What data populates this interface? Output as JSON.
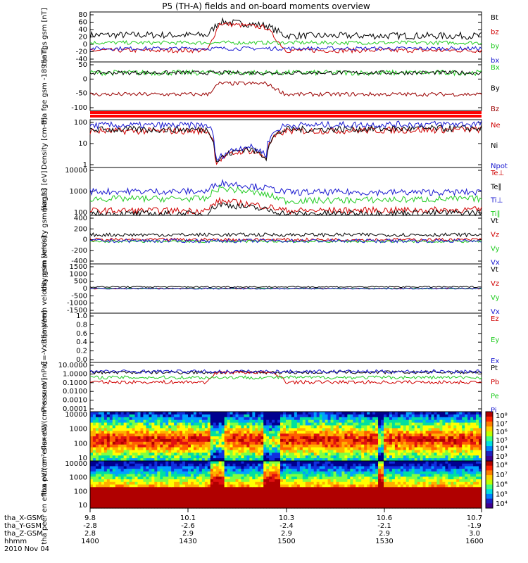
{
  "title": "P5 (TH-A) fields and on-board moments overview",
  "colors": {
    "black": "#000000",
    "red": "#d00000",
    "darkred": "#9a0000",
    "green": "#22cc22",
    "blue": "#1a1ad0"
  },
  "chart_data": [
    {
      "type": "line",
      "ylabel": "tha fgs gsm [nT]",
      "yticks": [
        "80",
        "60",
        "40",
        "20",
        "0",
        "-20",
        "-40"
      ],
      "ylim": [
        -40,
        90
      ],
      "series": [
        {
          "name": "Bt",
          "color": "#000000",
          "base": 30,
          "spread": 18,
          "x": [
            0,
            0.3,
            0.33,
            0.45,
            0.5,
            1
          ],
          "y": [
            30,
            30,
            65,
            55,
            28,
            28
          ]
        },
        {
          "name": "bz",
          "color": "#d00000",
          "base": -10,
          "spread": 12,
          "x": [
            0,
            0.3,
            0.33,
            0.45,
            0.5,
            1
          ],
          "y": [
            -10,
            -10,
            60,
            50,
            -10,
            -10
          ]
        },
        {
          "name": "by",
          "color": "#22cc22",
          "base": 10,
          "spread": 10,
          "x": [
            0,
            1
          ],
          "y": [
            10,
            10
          ]
        },
        {
          "name": "bx",
          "color": "#1a1ad0",
          "base": -5,
          "spread": 10,
          "x": [
            0,
            1
          ],
          "y": [
            -5,
            -5
          ]
        }
      ]
    },
    {
      "type": "line",
      "ylabel": "tha fge gsm -189 [nT]",
      "yticks": [
        "50",
        "0",
        "-50",
        "-100"
      ],
      "ylim": [
        -120,
        60
      ],
      "series": [
        {
          "name": "Bx",
          "color": "#22cc22",
          "base": 20,
          "spread": 20,
          "x": [
            0,
            1
          ],
          "y": [
            20,
            20
          ]
        },
        {
          "name": "By",
          "color": "#000000",
          "base": 20,
          "spread": 15,
          "x": [
            0,
            1
          ],
          "y": [
            20,
            20
          ]
        },
        {
          "name": "Bz",
          "color": "#9a0000",
          "base": -60,
          "spread": 15,
          "x": [
            0,
            0.3,
            0.33,
            0.45,
            0.5,
            1
          ],
          "y": [
            -60,
            -60,
            -20,
            -20,
            -60,
            -60
          ]
        }
      ]
    },
    {
      "type": "line",
      "ylabel": "Density [cm-3]",
      "yticks": [
        "100",
        "10",
        "1"
      ],
      "scale": "log",
      "ylim": [
        0.6,
        200
      ],
      "series": [
        {
          "name": "Ne",
          "color": "#d00000",
          "x": [
            0,
            0.3,
            0.32,
            0.4,
            0.45,
            0.5,
            1
          ],
          "y": [
            50,
            50,
            1,
            5,
            2,
            50,
            60
          ]
        },
        {
          "name": "Ni",
          "color": "#000000",
          "x": [
            0,
            0.3,
            0.32,
            0.4,
            0.45,
            0.5,
            1
          ],
          "y": [
            60,
            60,
            1,
            6,
            2,
            60,
            70
          ]
        },
        {
          "name": "Npot",
          "color": "#1a1ad0",
          "x": [
            0,
            0.3,
            0.32,
            0.4,
            0.45,
            0.5,
            1
          ],
          "y": [
            100,
            100,
            1,
            8,
            3,
            100,
            120
          ]
        }
      ]
    },
    {
      "type": "line",
      "ylabel": "mag13 [eV]",
      "yticks": [
        "10000",
        "1000",
        "100"
      ],
      "scale": "log",
      "ylim": [
        50,
        20000
      ],
      "series": [
        {
          "name": "Te⊥",
          "color": "#d00000",
          "x": [
            0,
            0.3,
            0.33,
            0.5,
            1
          ],
          "y": [
            90,
            90,
            300,
            90,
            100
          ]
        },
        {
          "name": "Te∥",
          "color": "#000000",
          "x": [
            0,
            0.3,
            0.33,
            0.5,
            1
          ],
          "y": [
            60,
            60,
            200,
            60,
            70
          ]
        },
        {
          "name": "Ti⊥",
          "color": "#1a1ad0",
          "x": [
            0,
            0.3,
            0.33,
            0.5,
            1
          ],
          "y": [
            1000,
            1000,
            3000,
            900,
            900
          ]
        },
        {
          "name": "Ti∥",
          "color": "#22cc22",
          "x": [
            0,
            0.3,
            0.33,
            0.5,
            1
          ],
          "y": [
            400,
            400,
            1500,
            300,
            400
          ]
        }
      ]
    },
    {
      "type": "line",
      "ylabel": "tha peim velocity gsm [km/s]",
      "yticks": [
        "400",
        "200",
        "0",
        "-200",
        "-400"
      ],
      "ylim": [
        -400,
        400
      ],
      "series": [
        {
          "name": "Vt",
          "color": "#000000",
          "base": 80,
          "spread": 60,
          "x": [
            0,
            1
          ],
          "y": [
            80,
            80
          ]
        },
        {
          "name": "Vz",
          "color": "#d00000",
          "base": 0,
          "spread": 50,
          "x": [
            0,
            1
          ],
          "y": [
            0,
            0
          ]
        },
        {
          "name": "Vy",
          "color": "#22cc22",
          "base": -30,
          "spread": 40,
          "x": [
            0,
            1
          ],
          "y": [
            -30,
            -30
          ]
        },
        {
          "name": "Vx",
          "color": "#1a1ad0",
          "base": -20,
          "spread": 60,
          "x": [
            0,
            1
          ],
          "y": [
            -20,
            -20
          ]
        }
      ]
    },
    {
      "type": "line",
      "ylabel": "tha peem velocity gsm [km/s]",
      "yticks": [
        "1500",
        "1000",
        "500",
        "0",
        "-500",
        "-1000",
        "-1500"
      ],
      "ylim": [
        -1500,
        1500
      ],
      "series": [
        {
          "name": "Vt",
          "color": "#000000",
          "base": 100,
          "spread": 80,
          "x": [
            0,
            1
          ],
          "y": [
            100,
            100
          ]
        },
        {
          "name": "Vz",
          "color": "#d00000",
          "base": 0,
          "spread": 60,
          "x": [
            0,
            1
          ],
          "y": [
            0,
            0
          ]
        },
        {
          "name": "Vy",
          "color": "#22cc22",
          "base": 0,
          "spread": 60,
          "x": [
            0,
            1
          ],
          "y": [
            0,
            0
          ]
        },
        {
          "name": "Vx",
          "color": "#1a1ad0",
          "base": 0,
          "spread": 80,
          "x": [
            0,
            1
          ],
          "y": [
            0,
            0
          ]
        }
      ]
    },
    {
      "type": "line",
      "ylabel": "E=-VxB [mV/m]",
      "yticks": [
        "1.0",
        "0.8",
        "0.6",
        "0.4",
        "0.2",
        "0.0"
      ],
      "ylim": [
        0,
        1
      ],
      "series": [
        {
          "name": "Ez",
          "color": "#d00000",
          "x": [],
          "y": []
        },
        {
          "name": "Ey",
          "color": "#22cc22",
          "x": [],
          "y": []
        },
        {
          "name": "Ex",
          "color": "#1a1ad0",
          "x": [],
          "y": []
        }
      ]
    },
    {
      "type": "line",
      "ylabel": "Pressure [nPa]",
      "yticks": [
        "10.0000",
        "1.0000",
        "0.1000",
        "0.0100",
        "0.0010",
        "0.0001"
      ],
      "scale": "log",
      "ylim": [
        0.0001,
        10
      ],
      "series": [
        {
          "name": "Pt",
          "color": "#000000",
          "x": [
            0,
            1
          ],
          "y": [
            1,
            1
          ]
        },
        {
          "name": "Pb",
          "color": "#d00000",
          "x": [
            0,
            0.3,
            0.33,
            0.45,
            0.5,
            1
          ],
          "y": [
            0.1,
            0.1,
            1,
            1,
            0.1,
            0.1
          ]
        },
        {
          "name": "Pe",
          "color": "#22cc22",
          "x": [
            0,
            1
          ],
          "y": [
            0.3,
            0.3
          ]
        },
        {
          "name": "Pi",
          "color": "#1a1ad0",
          "x": [
            0,
            1
          ],
          "y": [
            1.2,
            1.2
          ]
        }
      ]
    },
    {
      "type": "heatmap",
      "ylabel": "tha peir en eflux eV/(cm²-s-sr-eV)",
      "yticks": [
        "10000",
        "1000",
        "100",
        "10"
      ],
      "colorbar_ticks": [
        "10⁸",
        "10⁷",
        "10⁶",
        "10⁵",
        "10⁴",
        "10³"
      ]
    },
    {
      "type": "heatmap",
      "ylabel": "tha peer en eflux eV/(cm²-s-sr-eV)",
      "yticks": [
        "10000",
        "1000",
        "100",
        "10"
      ],
      "colorbar_ticks": [
        "10⁸",
        "10⁷",
        "10⁶",
        "10⁵",
        "10⁴"
      ]
    }
  ],
  "legends": [
    [
      "Bt",
      "bz",
      "by",
      "bx"
    ],
    [
      "Bx",
      "By",
      "Bz"
    ],
    [
      "Ne",
      "Ni",
      "Npot"
    ],
    [
      "Te⊥",
      "Te∥",
      "Ti⊥",
      "Ti∥"
    ],
    [
      "Vt",
      "Vz",
      "Vy",
      "Vx"
    ],
    [
      "Vt",
      "Vz",
      "Vy",
      "Vx"
    ],
    [
      "Ez",
      "Ey",
      "Ex"
    ],
    [
      "Pt",
      "Pb",
      "Pe",
      "Pi"
    ]
  ],
  "orbit": {
    "labels": [
      "tha_X-GSM",
      "tha_Y-GSM",
      "tha_Z-GSM",
      "hhmm",
      "2010 Nov 04"
    ],
    "columns": [
      [
        "9.8",
        "-2.8",
        "2.8",
        "1400"
      ],
      [
        "10.1",
        "-2.6",
        "2.9",
        "1430"
      ],
      [
        "10.3",
        "-2.4",
        "2.9",
        "1500"
      ],
      [
        "10.6",
        "-2.1",
        "2.9",
        "1530"
      ],
      [
        "10.7",
        "-1.9",
        "3.0",
        "1600"
      ]
    ]
  }
}
